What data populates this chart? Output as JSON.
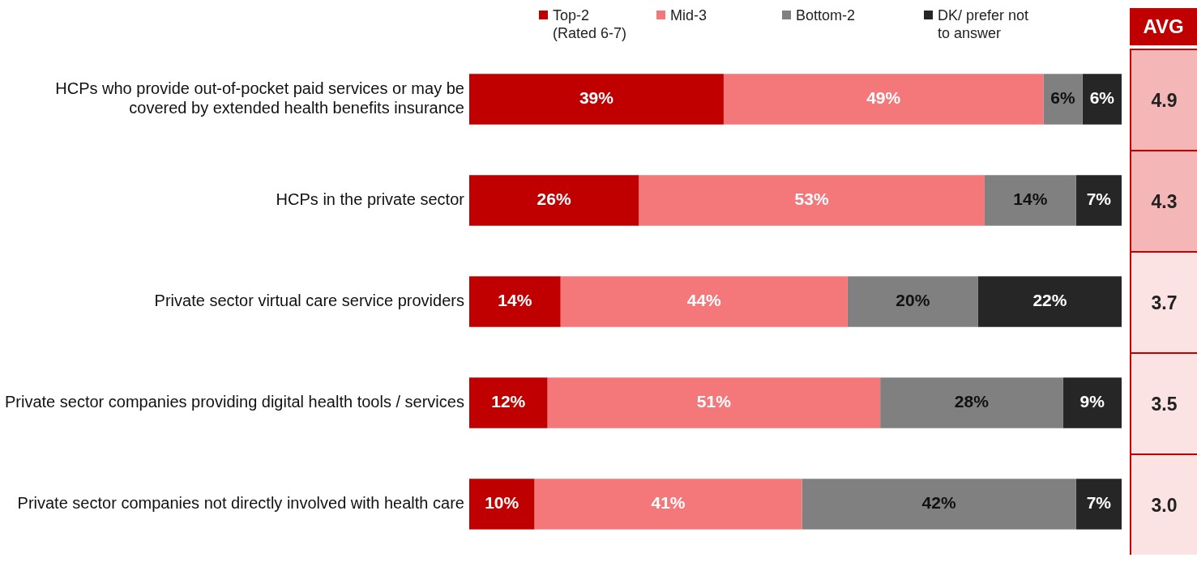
{
  "chart_data": {
    "type": "bar",
    "orientation": "horizontal",
    "stacked": true,
    "categories": [
      "HCPs who provide out-of-pocket paid services or may be covered by extended health benefits insurance",
      "HCPs in the private sector",
      "Private sector virtual care service providers",
      "Private sector companies providing digital health tools / services",
      "Private sector companies not directly involved with health care"
    ],
    "series": [
      {
        "name": "Top-2 (Rated 6-7)",
        "color": "#c00000",
        "values": [
          39,
          26,
          14,
          12,
          10
        ],
        "value_labels": [
          "39%",
          "26%",
          "14%",
          "12%",
          "10%"
        ]
      },
      {
        "name": "Mid-3",
        "color": "#f4777a",
        "values": [
          49,
          53,
          44,
          51,
          41
        ],
        "value_labels": [
          "49%",
          "53%",
          "44%",
          "51%",
          "41%"
        ]
      },
      {
        "name": "Bottom-2",
        "color": "#808080",
        "values": [
          6,
          14,
          20,
          28,
          42
        ],
        "value_labels": [
          "6%",
          "14%",
          "20%",
          "28%",
          "42%"
        ]
      },
      {
        "name": "DK/ prefer not to answer",
        "color": "#262626",
        "values": [
          6,
          7,
          22,
          9,
          7
        ],
        "value_labels": [
          "6%",
          "7%",
          "22%",
          "9%",
          "7%"
        ]
      }
    ],
    "xlim": [
      0,
      100
    ],
    "tick_labels": "y",
    "legend": "top",
    "annotations": [
      "AVG",
      "4.9",
      "4.3",
      "3.7",
      "3.5",
      "3.0"
    ]
  }
}
